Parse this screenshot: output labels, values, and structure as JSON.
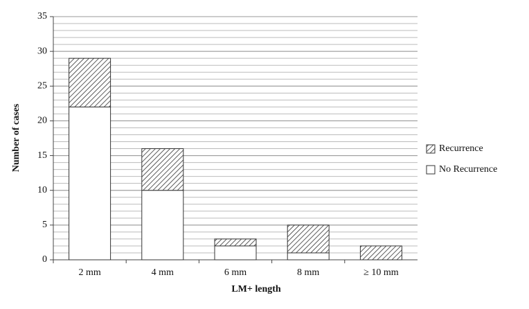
{
  "chart_data": {
    "type": "stacked_bar",
    "x_label": "LM+ length",
    "y_label": "Number of cases",
    "categories": [
      "2 mm",
      "4 mm",
      "6 mm",
      "8 mm",
      "≥ 10 mm"
    ],
    "series": [
      {
        "name": "No Recurrence",
        "color": "#ffffff",
        "pattern": "solid",
        "values": [
          22,
          10,
          2,
          1,
          0
        ]
      },
      {
        "name": "Recurrence",
        "color": "#ffffff",
        "pattern": "hatch",
        "values": [
          7,
          6,
          1,
          4,
          2
        ]
      }
    ],
    "ylim": [
      0,
      35
    ],
    "yticks": [
      0,
      5,
      10,
      15,
      20,
      25,
      30,
      35
    ],
    "grid": true,
    "minor_grid": true,
    "legend": "right"
  }
}
